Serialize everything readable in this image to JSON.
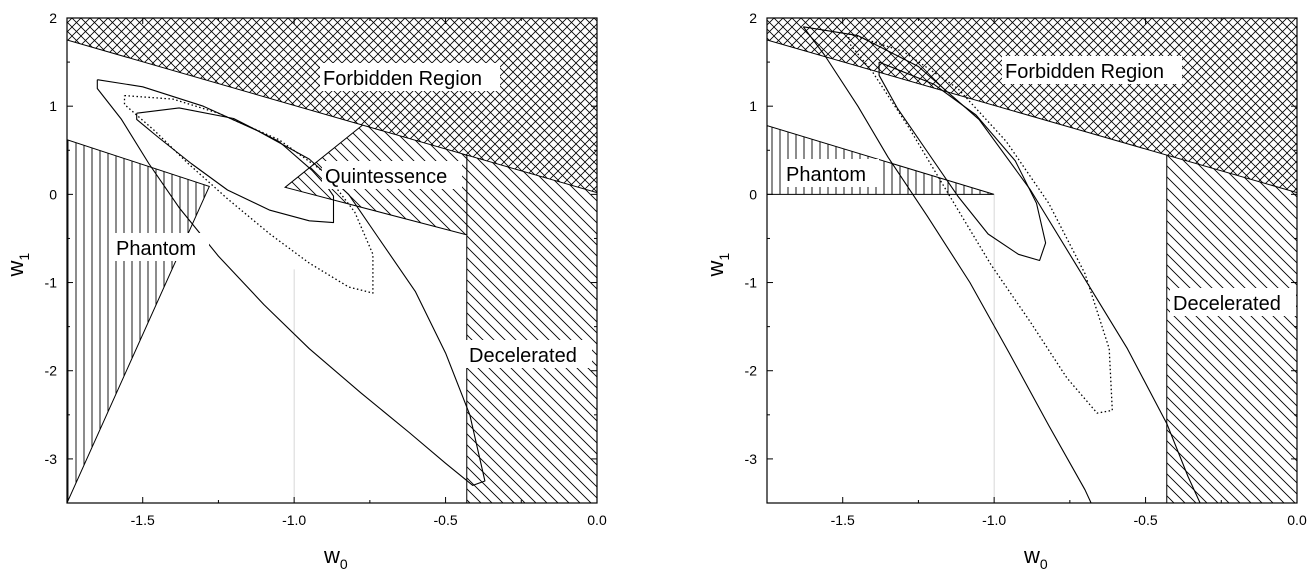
{
  "chart_data": [
    {
      "type": "contour",
      "panel": "left",
      "xlabel": "w",
      "xlabel_sub": "0",
      "ylabel": "w",
      "ylabel_sub": "1",
      "xlim": [
        -1.75,
        0.0
      ],
      "ylim": [
        -3.5,
        2.0
      ],
      "x_ticks": [
        -1.5,
        -1.0,
        -0.5,
        0.0
      ],
      "x_tick_labels": [
        "-1.5",
        "-1.0",
        "-0.5",
        "0.0"
      ],
      "y_ticks": [
        -3,
        -2,
        -1,
        0,
        1,
        2
      ],
      "y_tick_labels": [
        "-3",
        "-2",
        "-1",
        "0",
        "1",
        "2"
      ],
      "regions": {
        "forbidden": {
          "label": "Forbidden Region",
          "boundary": [
            [
              -1.75,
              1.75
            ],
            [
              0.0,
              0.02
            ]
          ]
        },
        "quintessence": {
          "label": "Quintessence",
          "polygon": [
            [
              -1.03,
              0.08
            ],
            [
              -0.74,
              0.88
            ],
            [
              -0.43,
              0.44
            ],
            [
              -0.43,
              -0.46
            ]
          ]
        },
        "phantom": {
          "label": "Phantom",
          "polygon": [
            [
              -1.75,
              0.62
            ],
            [
              -1.28,
              0.09
            ],
            [
              -1.75,
              -3.5
            ]
          ]
        },
        "decelerated": {
          "label": "Decelerated",
          "x_min": -0.43
        }
      },
      "contours": [
        {
          "style": "solid",
          "points": [
            [
              -1.52,
              0.92
            ],
            [
              -1.38,
              0.98
            ],
            [
              -1.2,
              0.86
            ],
            [
              -1.05,
              0.6
            ],
            [
              -0.94,
              0.27
            ],
            [
              -0.89,
              0.08
            ],
            [
              -0.87,
              -0.02
            ],
            [
              -0.87,
              -0.32
            ],
            [
              -0.95,
              -0.3
            ],
            [
              -1.08,
              -0.18
            ],
            [
              -1.22,
              0.05
            ],
            [
              -1.34,
              0.35
            ],
            [
              -1.45,
              0.65
            ],
            [
              -1.52,
              0.85
            ],
            [
              -1.52,
              0.92
            ]
          ]
        },
        {
          "style": "dotted",
          "points": [
            [
              -1.56,
              1.12
            ],
            [
              -1.4,
              1.08
            ],
            [
              -1.25,
              0.92
            ],
            [
              -1.05,
              0.62
            ],
            [
              -0.9,
              0.25
            ],
            [
              -0.8,
              -0.2
            ],
            [
              -0.74,
              -0.68
            ],
            [
              -0.74,
              -1.12
            ],
            [
              -0.82,
              -1.05
            ],
            [
              -0.95,
              -0.78
            ],
            [
              -1.08,
              -0.45
            ],
            [
              -1.22,
              -0.05
            ],
            [
              -1.35,
              0.35
            ],
            [
              -1.46,
              0.72
            ],
            [
              -1.56,
              1.02
            ],
            [
              -1.56,
              1.12
            ]
          ]
        },
        {
          "style": "solid",
          "points": [
            [
              -1.65,
              1.3
            ],
            [
              -1.5,
              1.22
            ],
            [
              -1.3,
              1.0
            ],
            [
              -1.12,
              0.72
            ],
            [
              -0.95,
              0.4
            ],
            [
              -0.82,
              0.0
            ],
            [
              -0.72,
              -0.5
            ],
            [
              -0.6,
              -1.1
            ],
            [
              -0.5,
              -1.8
            ],
            [
              -0.42,
              -2.5
            ],
            [
              -0.37,
              -3.25
            ],
            [
              -0.41,
              -3.3
            ],
            [
              -0.5,
              -3.05
            ],
            [
              -0.62,
              -2.7
            ],
            [
              -0.78,
              -2.25
            ],
            [
              -0.95,
              -1.75
            ],
            [
              -1.1,
              -1.25
            ],
            [
              -1.25,
              -0.7
            ],
            [
              -1.38,
              -0.15
            ],
            [
              -1.48,
              0.35
            ],
            [
              -1.57,
              0.85
            ],
            [
              -1.65,
              1.2
            ],
            [
              -1.65,
              1.3
            ]
          ]
        }
      ]
    },
    {
      "type": "contour",
      "panel": "right",
      "xlabel": "w",
      "xlabel_sub": "0",
      "ylabel": "w",
      "ylabel_sub": "1",
      "xlim": [
        -1.75,
        0.0
      ],
      "ylim": [
        -3.5,
        2.0
      ],
      "x_ticks": [
        -1.5,
        -1.0,
        -0.5,
        0.0
      ],
      "x_tick_labels": [
        "-1.5",
        "-1.0",
        "-0.5",
        "0.0"
      ],
      "y_ticks": [
        -3,
        -2,
        -1,
        0,
        1,
        2
      ],
      "y_tick_labels": [
        "-3",
        "-2",
        "-1",
        "0",
        "1",
        "2"
      ],
      "regions": {
        "forbidden": {
          "label": "Forbidden Region",
          "boundary": [
            [
              -1.75,
              1.75
            ],
            [
              0.0,
              0.02
            ]
          ]
        },
        "phantom": {
          "label": "Phantom",
          "polygon": [
            [
              -1.75,
              0.78
            ],
            [
              -1.0,
              0.0
            ],
            [
              -1.75,
              0.0
            ]
          ]
        },
        "decelerated": {
          "label": "Decelerated",
          "x_min": -0.43
        }
      },
      "contours": [
        {
          "style": "solid",
          "points": [
            [
              -1.38,
              1.5
            ],
            [
              -1.2,
              1.25
            ],
            [
              -1.06,
              0.9
            ],
            [
              -0.93,
              0.38
            ],
            [
              -0.86,
              -0.1
            ],
            [
              -0.83,
              -0.55
            ],
            [
              -0.85,
              -0.75
            ],
            [
              -0.92,
              -0.68
            ],
            [
              -1.02,
              -0.45
            ],
            [
              -1.12,
              -0.02
            ],
            [
              -1.22,
              0.48
            ],
            [
              -1.32,
              0.98
            ],
            [
              -1.38,
              1.35
            ],
            [
              -1.38,
              1.5
            ]
          ]
        },
        {
          "style": "dotted",
          "points": [
            [
              -1.48,
              1.82
            ],
            [
              -1.3,
              1.62
            ],
            [
              -1.12,
              1.2
            ],
            [
              -0.96,
              0.6
            ],
            [
              -0.82,
              -0.1
            ],
            [
              -0.7,
              -0.9
            ],
            [
              -0.62,
              -1.75
            ],
            [
              -0.61,
              -2.45
            ],
            [
              -0.66,
              -2.48
            ],
            [
              -0.76,
              -2.08
            ],
            [
              -0.88,
              -1.45
            ],
            [
              -1.01,
              -0.8
            ],
            [
              -1.15,
              0.0
            ],
            [
              -1.28,
              0.75
            ],
            [
              -1.4,
              1.38
            ],
            [
              -1.48,
              1.72
            ],
            [
              -1.48,
              1.82
            ]
          ]
        },
        {
          "style": "solid",
          "points": [
            [
              -1.63,
              1.9
            ],
            [
              -1.45,
              1.8
            ],
            [
              -1.25,
              1.45
            ],
            [
              -1.05,
              0.85
            ],
            [
              -0.88,
              0.05
            ],
            [
              -0.72,
              -0.85
            ],
            [
              -0.56,
              -1.75
            ],
            [
              -0.43,
              -2.6
            ],
            [
              -0.36,
              -3.2
            ],
            [
              -0.32,
              -3.5
            ]
          ]
        },
        {
          "style": "solid",
          "points": [
            [
              -1.63,
              1.9
            ],
            [
              -1.56,
              1.58
            ],
            [
              -1.45,
              1.0
            ],
            [
              -1.35,
              0.42
            ],
            [
              -1.22,
              -0.25
            ],
            [
              -1.08,
              -1.0
            ],
            [
              -0.95,
              -1.8
            ],
            [
              -0.82,
              -2.62
            ],
            [
              -0.7,
              -3.35
            ],
            [
              -0.68,
              -3.5
            ]
          ]
        }
      ]
    }
  ]
}
